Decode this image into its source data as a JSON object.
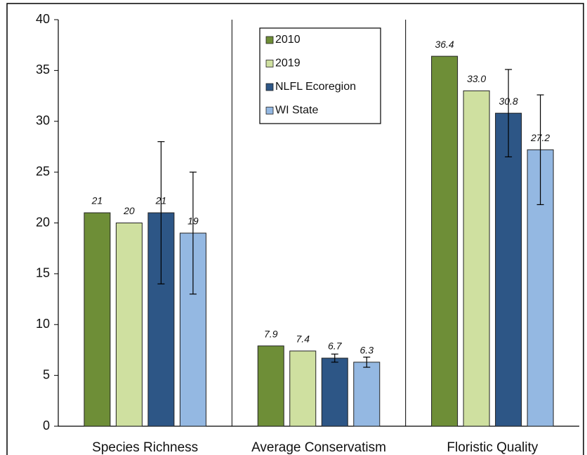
{
  "chart_data": {
    "type": "bar",
    "categories": [
      "Species Richness",
      "Average Conservatism",
      "Floristic Quality"
    ],
    "series": [
      {
        "name": "2010",
        "color": "#6e8e37",
        "values": [
          21,
          7.9,
          36.4
        ],
        "value_labels": [
          "21",
          "7.9",
          "36.4"
        ],
        "errors": [
          null,
          null,
          null
        ]
      },
      {
        "name": "2019",
        "color": "#cfe0a0",
        "values": [
          20,
          7.4,
          33.0
        ],
        "value_labels": [
          "20",
          "7.4",
          "33.0"
        ],
        "errors": [
          null,
          null,
          null
        ]
      },
      {
        "name": "NLFL Ecoregion",
        "color": "#2d5686",
        "values": [
          21,
          6.7,
          30.8
        ],
        "value_labels": [
          "21",
          "6.7",
          "30.8"
        ],
        "errors": [
          7,
          0.4,
          4.3
        ]
      },
      {
        "name": "WI State",
        "color": "#94b8e2",
        "values": [
          19,
          6.3,
          27.2
        ],
        "value_labels": [
          "19",
          "6.3",
          "27.2"
        ],
        "errors": [
          6,
          0.5,
          5.4
        ]
      }
    ],
    "ylim": [
      0,
      40
    ],
    "yticks": [
      0,
      5,
      10,
      15,
      20,
      25,
      30,
      35,
      40
    ],
    "grid": false,
    "legend": "top-center"
  }
}
